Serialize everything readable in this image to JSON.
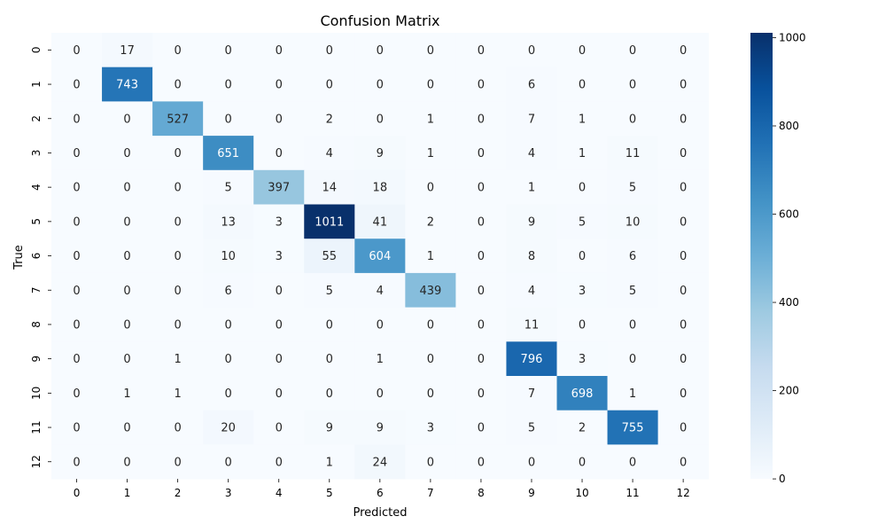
{
  "chart_data": {
    "type": "heatmap",
    "title": "Confusion Matrix",
    "xlabel": "Predicted",
    "ylabel": "True",
    "x_categories": [
      "0",
      "1",
      "2",
      "3",
      "4",
      "5",
      "6",
      "7",
      "8",
      "9",
      "10",
      "11",
      "12"
    ],
    "y_categories": [
      "0",
      "1",
      "2",
      "3",
      "4",
      "5",
      "6",
      "7",
      "8",
      "9",
      "10",
      "11",
      "12"
    ],
    "matrix": [
      [
        0,
        17,
        0,
        0,
        0,
        0,
        0,
        0,
        0,
        0,
        0,
        0,
        0
      ],
      [
        0,
        743,
        0,
        0,
        0,
        0,
        0,
        0,
        0,
        6,
        0,
        0,
        0
      ],
      [
        0,
        0,
        527,
        0,
        0,
        2,
        0,
        1,
        0,
        7,
        1,
        0,
        0
      ],
      [
        0,
        0,
        0,
        651,
        0,
        4,
        9,
        1,
        0,
        4,
        1,
        11,
        0
      ],
      [
        0,
        0,
        0,
        5,
        397,
        14,
        18,
        0,
        0,
        1,
        0,
        5,
        0
      ],
      [
        0,
        0,
        0,
        13,
        3,
        1011,
        41,
        2,
        0,
        9,
        5,
        10,
        0
      ],
      [
        0,
        0,
        0,
        10,
        3,
        55,
        604,
        1,
        0,
        8,
        0,
        6,
        0
      ],
      [
        0,
        0,
        0,
        6,
        0,
        5,
        4,
        439,
        0,
        4,
        3,
        5,
        0
      ],
      [
        0,
        0,
        0,
        0,
        0,
        0,
        0,
        0,
        0,
        11,
        0,
        0,
        0
      ],
      [
        0,
        0,
        1,
        0,
        0,
        0,
        1,
        0,
        0,
        796,
        3,
        0,
        0
      ],
      [
        0,
        1,
        1,
        0,
        0,
        0,
        0,
        0,
        0,
        7,
        698,
        1,
        0
      ],
      [
        0,
        0,
        0,
        20,
        0,
        9,
        9,
        3,
        0,
        5,
        2,
        755,
        0
      ],
      [
        0,
        0,
        0,
        0,
        0,
        1,
        24,
        0,
        0,
        0,
        0,
        0,
        0
      ]
    ],
    "colormap": "Blues",
    "colorbar": {
      "min": 0,
      "max": 1011,
      "ticks": [
        0,
        200,
        400,
        600,
        800,
        1000
      ]
    },
    "grid": false
  }
}
